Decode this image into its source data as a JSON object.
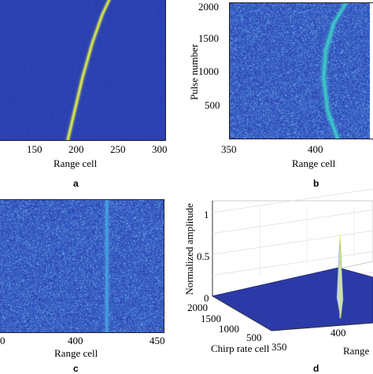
{
  "panels": [
    {
      "id": "a",
      "letter": "a",
      "xlabel": "Range cell",
      "xticks": [
        "150",
        "200",
        "250",
        "300"
      ]
    },
    {
      "id": "b",
      "letter": "b",
      "xlabel": "Range cell",
      "ylabel": "Pulse number",
      "xticks": [
        "350",
        "400"
      ],
      "yticks": [
        "2000",
        "1500",
        "1000",
        "500"
      ]
    },
    {
      "id": "c",
      "letter": "c",
      "xlabel": "Range cell",
      "xticks": [
        "0",
        "400",
        "450"
      ]
    },
    {
      "id": "d",
      "letter": "d",
      "zlabel": "Normalized amplitude",
      "ylabel": "Chirp rate cell",
      "xlabel": "Range",
      "zticks": [
        "1",
        "0.5",
        "0"
      ],
      "yticks": [
        "2000",
        "1500",
        "1000",
        "500",
        "350"
      ],
      "xticks": [
        "400"
      ]
    }
  ],
  "chart_data": [
    {
      "type": "heatmap",
      "panel": "a",
      "xlabel": "Range cell",
      "xlim": [
        100,
        300
      ],
      "ylim": [
        0,
        2000
      ],
      "trajectory": {
        "x": [
          182,
          190,
          200,
          212,
          224,
          232
        ],
        "y": [
          0,
          400,
          900,
          1400,
          1800,
          2000
        ]
      }
    },
    {
      "type": "heatmap",
      "panel": "b",
      "xlabel": "Range cell",
      "ylabel": "Pulse number",
      "xlim": [
        350,
        420
      ],
      "ylim": [
        0,
        2000
      ],
      "trajectory": {
        "x": [
          404,
          399,
          397,
          398,
          402,
          408
        ],
        "y": [
          0,
          400,
          900,
          1300,
          1700,
          2000
        ]
      }
    },
    {
      "type": "heatmap",
      "panel": "c",
      "xlabel": "Range cell",
      "xlim": [
        300,
        450
      ],
      "ylim": [
        0,
        2000
      ],
      "trajectory": {
        "x": [
          398,
          398,
          398,
          398
        ],
        "y": [
          0,
          700,
          1400,
          2000
        ]
      }
    },
    {
      "type": "surface",
      "panel": "d",
      "zlabel": "Normalized amplitude",
      "ylabel": "Chirp rate cell",
      "xlabel": "Range",
      "zlim": [
        0,
        1
      ],
      "peak": {
        "range_cell": 400,
        "amplitude": 1
      }
    }
  ],
  "colors": {
    "background_blue": "#2b3db3",
    "trace_yellow": "#e8f040",
    "trace_cyan": "#35c6d0",
    "frame": "#222222"
  }
}
